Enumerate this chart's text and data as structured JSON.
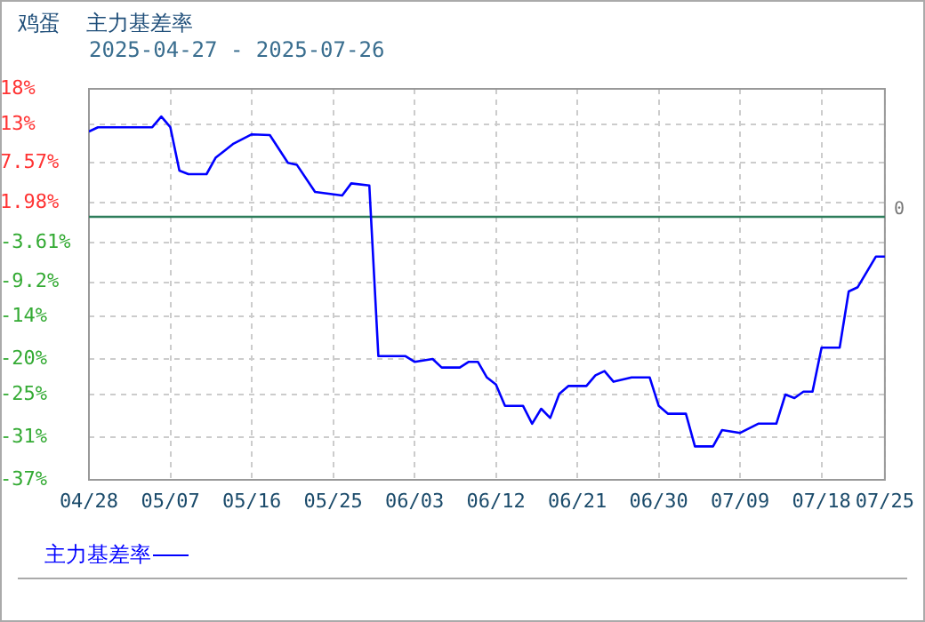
{
  "chart_data": {
    "type": "line",
    "title": "鸡蛋  主力基差率",
    "subtitle": "2025-04-27 - 2025-07-26",
    "x": [
      "2025-04-28",
      "2025-04-29",
      "2025-05-05",
      "2025-05-06",
      "2025-05-07",
      "2025-05-08",
      "2025-05-09",
      "2025-05-11",
      "2025-05-12",
      "2025-05-14",
      "2025-05-16",
      "2025-05-18",
      "2025-05-20",
      "2025-05-21",
      "2025-05-23",
      "2025-05-26",
      "2025-05-27",
      "2025-05-29",
      "2025-05-30",
      "2025-06-02",
      "2025-06-03",
      "2025-06-05",
      "2025-06-06",
      "2025-06-08",
      "2025-06-09",
      "2025-06-10",
      "2025-06-11",
      "2025-06-12",
      "2025-06-13",
      "2025-06-15",
      "2025-06-16",
      "2025-06-17",
      "2025-06-18",
      "2025-06-19",
      "2025-06-20",
      "2025-06-22",
      "2025-06-23",
      "2025-06-24",
      "2025-06-25",
      "2025-06-27",
      "2025-06-29",
      "2025-06-30",
      "2025-07-01",
      "2025-07-03",
      "2025-07-04",
      "2025-07-06",
      "2025-07-07",
      "2025-07-09",
      "2025-07-11",
      "2025-07-13",
      "2025-07-14",
      "2025-07-15",
      "2025-07-16",
      "2025-07-17",
      "2025-07-18",
      "2025-07-20",
      "2025-07-21",
      "2025-07-22",
      "2025-07-24",
      "2025-07-25"
    ],
    "series": [
      {
        "name": "主力基差率",
        "color": "#0000ff",
        "values": [
          12.0,
          12.6,
          12.6,
          14.1,
          12.6,
          6.5,
          6.0,
          6.0,
          8.3,
          10.3,
          11.6,
          11.5,
          7.6,
          7.3,
          3.5,
          3.0,
          4.7,
          4.4,
          -19.6,
          -19.6,
          -20.4,
          -20.0,
          -21.2,
          -21.2,
          -20.4,
          -20.4,
          -22.6,
          -23.6,
          -26.6,
          -26.6,
          -29.1,
          -27.0,
          -28.3,
          -24.9,
          -23.8,
          -23.8,
          -22.3,
          -21.7,
          -23.2,
          -22.6,
          -22.6,
          -26.6,
          -27.7,
          -27.7,
          -32.3,
          -32.3,
          -30.0,
          -30.4,
          -29.1,
          -29.1,
          -25.0,
          -25.5,
          -24.6,
          -24.6,
          -18.4,
          -18.4,
          -10.5,
          -9.9,
          -5.6,
          -5.6
        ]
      }
    ],
    "xlim": [
      "2025-04-28",
      "2025-07-25"
    ],
    "xticks": [
      {
        "value": "2025-04-28",
        "label": "04/28"
      },
      {
        "value": "2025-05-07",
        "label": "05/07"
      },
      {
        "value": "2025-05-16",
        "label": "05/16"
      },
      {
        "value": "2025-05-25",
        "label": "05/25"
      },
      {
        "value": "2025-06-03",
        "label": "06/03"
      },
      {
        "value": "2025-06-12",
        "label": "06/12"
      },
      {
        "value": "2025-06-21",
        "label": "06/21"
      },
      {
        "value": "2025-06-30",
        "label": "06/30"
      },
      {
        "value": "2025-07-09",
        "label": "07/09"
      },
      {
        "value": "2025-07-18",
        "label": "07/18"
      },
      {
        "value": "2025-07-25",
        "label": "07/25"
      }
    ],
    "ylim": [
      -37,
      18
    ],
    "yticks": [
      {
        "value": -37,
        "label": "-37%"
      },
      {
        "value": -31,
        "label": "-31%"
      },
      {
        "value": -25,
        "label": "-25%"
      },
      {
        "value": -20,
        "label": "-20%"
      },
      {
        "value": -14,
        "label": "-14%"
      },
      {
        "value": -9.2,
        "label": "-9.2%"
      },
      {
        "value": -3.61,
        "label": "-3.61%"
      },
      {
        "value": 1.98,
        "label": "1.98%"
      },
      {
        "value": 7.57,
        "label": "7.57%"
      },
      {
        "value": 13,
        "label": "13%"
      },
      {
        "value": 18,
        "label": "18%"
      }
    ],
    "ref_lines": [
      {
        "axis": "y",
        "value": 0,
        "label": "0",
        "color": "#2e7d5b"
      }
    ],
    "grid": true,
    "legend": "bottom left",
    "marker": "none",
    "line_style": "solid"
  }
}
